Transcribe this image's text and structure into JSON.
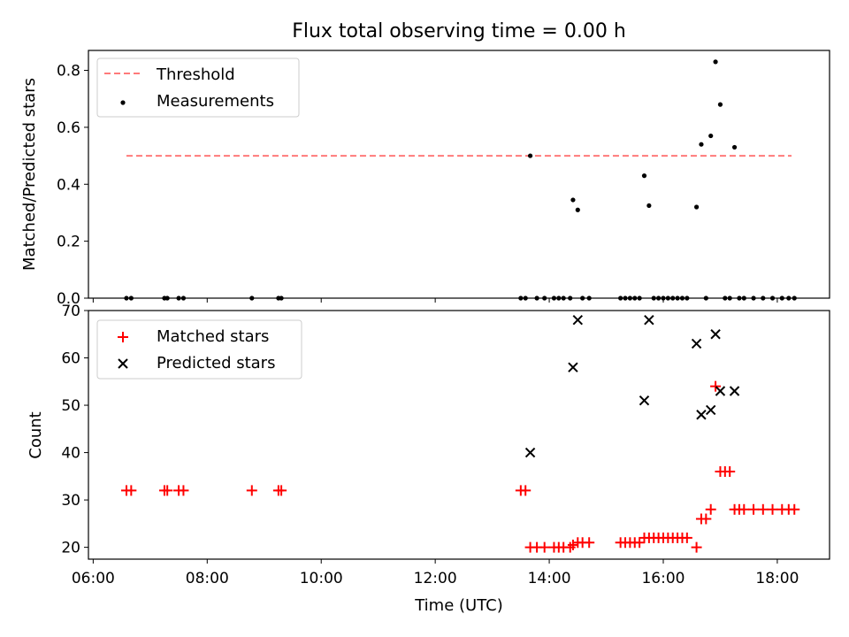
{
  "chart_data": [
    {
      "type": "scatter",
      "title": "Flux total observing time = 0.00 h",
      "xlabel": "",
      "ylabel": "Matched/Predicted stars",
      "xlim": [
        "05:55",
        "18:55"
      ],
      "ylim": [
        0,
        0.87
      ],
      "yticks": [
        "0.0",
        "0.2",
        "0.4",
        "0.6",
        "0.8"
      ],
      "grid": false,
      "legend_position": "upper-left",
      "threshold": {
        "name": "Threshold",
        "value": 0.5,
        "x_start": "06:35",
        "x_end": "18:15",
        "color": "#ff7a7a"
      },
      "series": [
        {
          "name": "Measurements",
          "marker": "dot",
          "color": "#000000",
          "points": [
            [
              "06:35",
              0
            ],
            [
              "06:40",
              0
            ],
            [
              "07:15",
              0
            ],
            [
              "07:18",
              0
            ],
            [
              "07:30",
              0
            ],
            [
              "07:35",
              0
            ],
            [
              "08:47",
              0
            ],
            [
              "09:15",
              0
            ],
            [
              "09:18",
              0
            ],
            [
              "13:30",
              0
            ],
            [
              "13:35",
              0
            ],
            [
              "13:40",
              0.5
            ],
            [
              "13:47",
              0
            ],
            [
              "13:55",
              0
            ],
            [
              "14:05",
              0
            ],
            [
              "14:10",
              0
            ],
            [
              "14:15",
              0
            ],
            [
              "14:22",
              0
            ],
            [
              "14:25",
              0.345
            ],
            [
              "14:30",
              0.31
            ],
            [
              "14:35",
              0
            ],
            [
              "14:42",
              0
            ],
            [
              "15:15",
              0
            ],
            [
              "15:20",
              0
            ],
            [
              "15:25",
              0
            ],
            [
              "15:30",
              0
            ],
            [
              "15:35",
              0
            ],
            [
              "15:40",
              0.43
            ],
            [
              "15:45",
              0.325
            ],
            [
              "15:50",
              0
            ],
            [
              "15:55",
              0
            ],
            [
              "16:00",
              0
            ],
            [
              "16:05",
              0
            ],
            [
              "16:10",
              0
            ],
            [
              "16:15",
              0
            ],
            [
              "16:20",
              0
            ],
            [
              "16:25",
              0
            ],
            [
              "16:35",
              0.32
            ],
            [
              "16:40",
              0.54
            ],
            [
              "16:45",
              0
            ],
            [
              "16:50",
              0.57
            ],
            [
              "16:55",
              0.83
            ],
            [
              "17:00",
              0.68
            ],
            [
              "17:05",
              0
            ],
            [
              "17:10",
              0
            ],
            [
              "17:15",
              0.53
            ],
            [
              "17:20",
              0
            ],
            [
              "17:25",
              0
            ],
            [
              "17:35",
              0
            ],
            [
              "17:45",
              0
            ],
            [
              "17:55",
              0
            ],
            [
              "18:05",
              0
            ],
            [
              "18:12",
              0
            ],
            [
              "18:18",
              0
            ]
          ]
        }
      ]
    },
    {
      "type": "scatter",
      "title": "",
      "xlabel": "Time (UTC)",
      "ylabel": "Count",
      "xlim": [
        "05:55",
        "18:55"
      ],
      "ylim": [
        17.5,
        70
      ],
      "xticks": [
        "06:00",
        "08:00",
        "10:00",
        "12:00",
        "14:00",
        "16:00",
        "18:00"
      ],
      "yticks": [
        "20",
        "30",
        "40",
        "50",
        "60",
        "70"
      ],
      "grid": false,
      "legend_position": "upper-left",
      "series": [
        {
          "name": "Matched stars",
          "marker": "plus",
          "color": "#ff0000",
          "points": [
            [
              "06:35",
              32
            ],
            [
              "06:40",
              32
            ],
            [
              "07:15",
              32
            ],
            [
              "07:18",
              32
            ],
            [
              "07:30",
              32
            ],
            [
              "07:35",
              32
            ],
            [
              "08:47",
              32
            ],
            [
              "09:15",
              32
            ],
            [
              "09:18",
              32
            ],
            [
              "13:30",
              32
            ],
            [
              "13:35",
              32
            ],
            [
              "13:40",
              20
            ],
            [
              "13:47",
              20
            ],
            [
              "13:55",
              20
            ],
            [
              "14:05",
              20
            ],
            [
              "14:10",
              20
            ],
            [
              "14:15",
              20
            ],
            [
              "14:22",
              20
            ],
            [
              "14:25",
              20.5
            ],
            [
              "14:30",
              21
            ],
            [
              "14:35",
              21
            ],
            [
              "14:42",
              21
            ],
            [
              "15:15",
              21
            ],
            [
              "15:20",
              21
            ],
            [
              "15:25",
              21
            ],
            [
              "15:30",
              21
            ],
            [
              "15:35",
              21
            ],
            [
              "15:40",
              22
            ],
            [
              "15:45",
              22
            ],
            [
              "15:50",
              22
            ],
            [
              "15:55",
              22
            ],
            [
              "16:00",
              22
            ],
            [
              "16:05",
              22
            ],
            [
              "16:10",
              22
            ],
            [
              "16:15",
              22
            ],
            [
              "16:20",
              22
            ],
            [
              "16:25",
              22
            ],
            [
              "16:35",
              20
            ],
            [
              "16:40",
              26
            ],
            [
              "16:45",
              26
            ],
            [
              "16:50",
              28
            ],
            [
              "16:55",
              54
            ],
            [
              "17:00",
              36
            ],
            [
              "17:05",
              36
            ],
            [
              "17:10",
              36
            ],
            [
              "17:15",
              28
            ],
            [
              "17:20",
              28
            ],
            [
              "17:25",
              28
            ],
            [
              "17:35",
              28
            ],
            [
              "17:45",
              28
            ],
            [
              "17:55",
              28
            ],
            [
              "18:05",
              28
            ],
            [
              "18:12",
              28
            ],
            [
              "18:18",
              28
            ]
          ]
        },
        {
          "name": "Predicted stars",
          "marker": "x",
          "color": "#000000",
          "points": [
            [
              "13:40",
              40
            ],
            [
              "14:25",
              58
            ],
            [
              "14:30",
              68
            ],
            [
              "15:40",
              51
            ],
            [
              "15:45",
              68
            ],
            [
              "16:35",
              63
            ],
            [
              "16:40",
              48
            ],
            [
              "16:50",
              49
            ],
            [
              "16:55",
              65
            ],
            [
              "17:00",
              53
            ],
            [
              "17:15",
              53
            ]
          ]
        }
      ]
    }
  ]
}
